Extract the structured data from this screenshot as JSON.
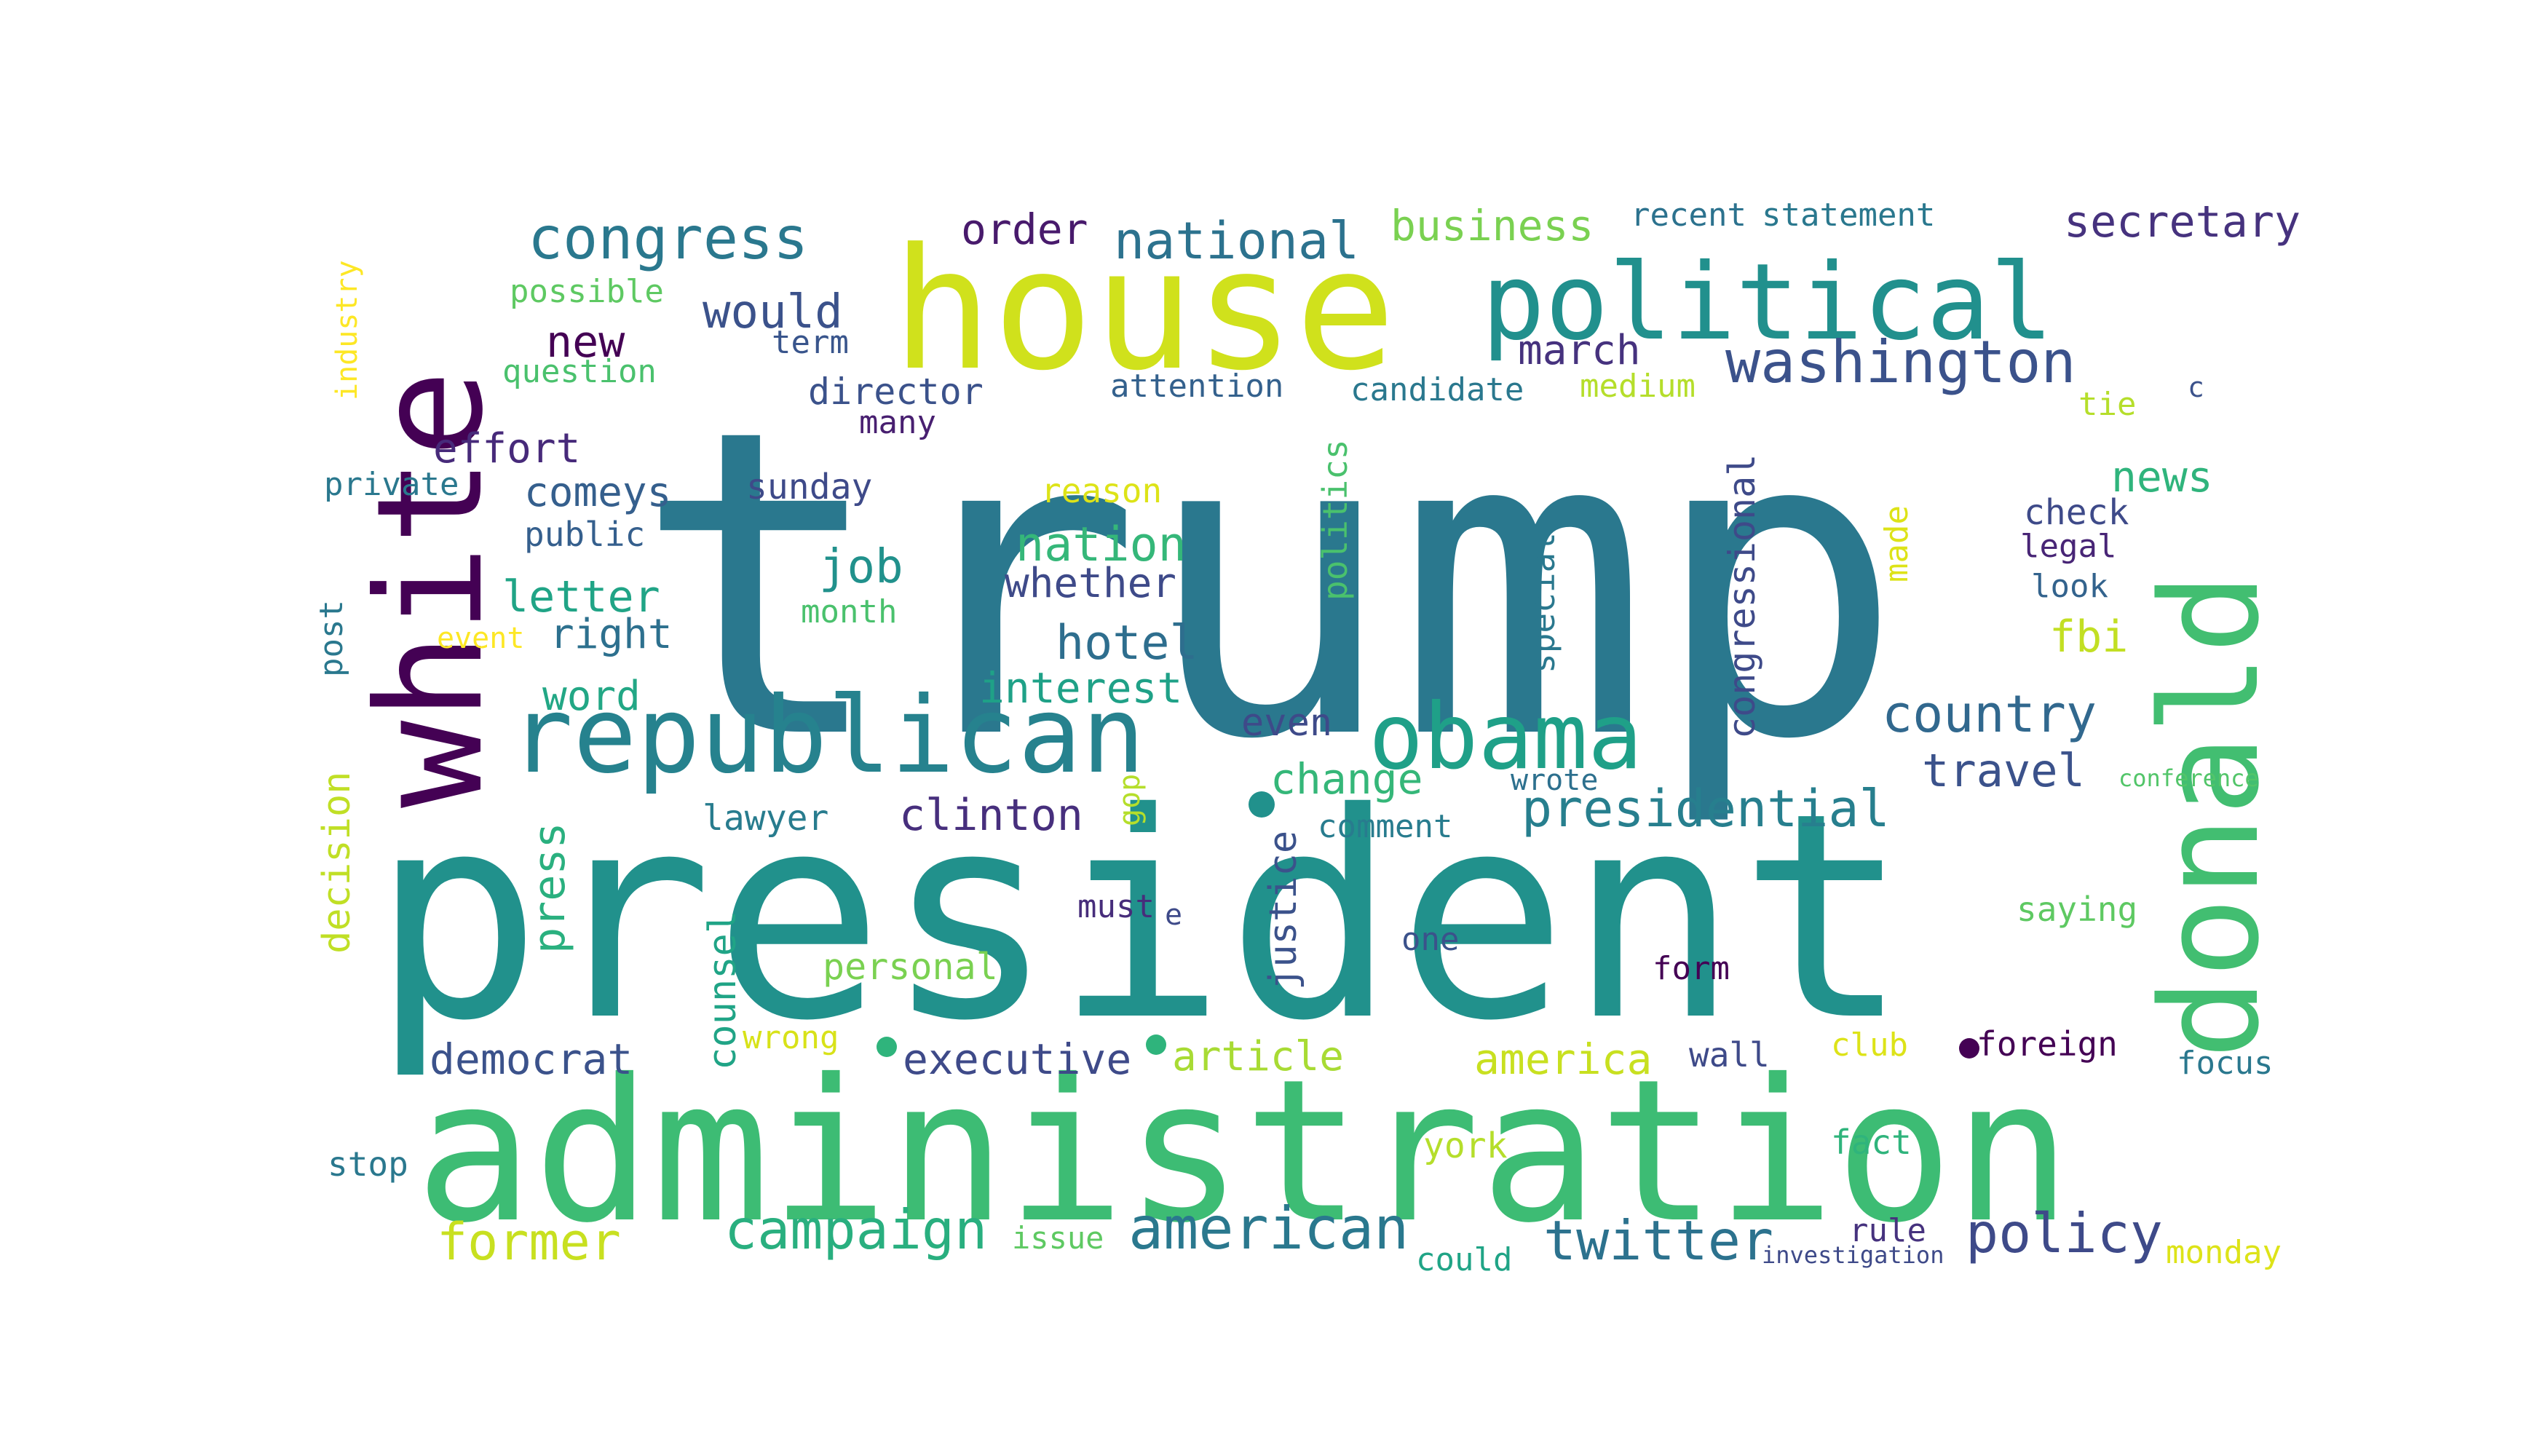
{
  "words": [
    {
      "text": "trump",
      "color": "#2a788e"
    },
    {
      "text": "president",
      "color": "#21918c"
    },
    {
      "text": "administration",
      "color": "#3dbc74"
    },
    {
      "text": "house",
      "color": "#d0e11c"
    },
    {
      "text": "white",
      "color": "#440154"
    },
    {
      "text": "donald",
      "color": "#42be71"
    },
    {
      "text": "political",
      "color": "#21908d"
    },
    {
      "text": "republican",
      "color": "#26828e"
    },
    {
      "text": "obama",
      "color": "#1fa088"
    },
    {
      "text": "congress",
      "color": "#2a788e"
    },
    {
      "text": "washington",
      "color": "#3b528b"
    },
    {
      "text": "national",
      "color": "#2c728e"
    },
    {
      "text": "presidential",
      "color": "#277f8e"
    },
    {
      "text": "country",
      "color": "#31688e"
    },
    {
      "text": "campaign",
      "color": "#29af7f"
    },
    {
      "text": "american",
      "color": "#2a788e"
    },
    {
      "text": "twitter",
      "color": "#2c728e"
    },
    {
      "text": "policy",
      "color": "#3e4a89"
    },
    {
      "text": "former",
      "color": "#c8e020"
    },
    {
      "text": "secretary",
      "color": "#46327e"
    },
    {
      "text": "nation",
      "color": "#35b779"
    },
    {
      "text": "hotel",
      "color": "#2e6e8e"
    },
    {
      "text": "clinton",
      "color": "#472f7d"
    },
    {
      "text": "travel",
      "color": "#3b528b"
    },
    {
      "text": "business",
      "color": "#7ad151"
    },
    {
      "text": "news",
      "color": "#2fb47c"
    },
    {
      "text": "order",
      "color": "#481a6c"
    },
    {
      "text": "new",
      "color": "#440154"
    },
    {
      "text": "would",
      "color": "#3b528b"
    },
    {
      "text": "march",
      "color": "#46327e"
    },
    {
      "text": "letter",
      "color": "#20a486"
    },
    {
      "text": "job",
      "color": "#21918c"
    },
    {
      "text": "fbi",
      "color": "#c2df23"
    },
    {
      "text": "america",
      "color": "#c8e020"
    },
    {
      "text": "executive",
      "color": "#3e4a89"
    },
    {
      "text": "democrat",
      "color": "#3b528b"
    },
    {
      "text": "interest",
      "color": "#1fa187"
    },
    {
      "text": "word",
      "color": "#22a785"
    },
    {
      "text": "change",
      "color": "#35b779"
    },
    {
      "text": "article",
      "color": "#a8db34"
    },
    {
      "text": "effort",
      "color": "#472a7a"
    },
    {
      "text": "comeys",
      "color": "#355f8d"
    },
    {
      "text": "right",
      "color": "#2d708e"
    },
    {
      "text": "press",
      "color": "#2ab07f"
    },
    {
      "text": "counsel",
      "color": "#20a486"
    },
    {
      "text": "justice",
      "color": "#3b528b"
    },
    {
      "text": "congressional",
      "color": "#3e4a89"
    },
    {
      "text": "whether",
      "color": "#3e4a89"
    },
    {
      "text": "director",
      "color": "#3b528b"
    },
    {
      "text": "decision",
      "color": "#c0df25"
    },
    {
      "text": "special",
      "color": "#2a788e"
    },
    {
      "text": "politics",
      "color": "#4ac16d"
    },
    {
      "text": "even",
      "color": "#3e4a89"
    },
    {
      "text": "personal",
      "color": "#7ad151"
    },
    {
      "text": "lawyer",
      "color": "#287c8e"
    },
    {
      "text": "attention",
      "color": "#34618d"
    },
    {
      "text": "candidate",
      "color": "#2a788e"
    },
    {
      "text": "medium",
      "color": "#b5de2b"
    },
    {
      "text": "sunday",
      "color": "#3e4a89"
    },
    {
      "text": "reason",
      "color": "#dde318"
    },
    {
      "text": "possible",
      "color": "#5ec962"
    },
    {
      "text": "question",
      "color": "#4ac16d"
    },
    {
      "text": "private",
      "color": "#2a788e"
    },
    {
      "text": "public",
      "color": "#355f8d"
    },
    {
      "text": "term",
      "color": "#39558c"
    },
    {
      "text": "many",
      "color": "#481f70"
    },
    {
      "text": "month",
      "color": "#4ac16d"
    },
    {
      "text": "event",
      "color": "#fde725"
    },
    {
      "text": "post",
      "color": "#2a788e"
    },
    {
      "text": "industry",
      "color": "#fde725"
    },
    {
      "text": "recent",
      "color": "#2c728e"
    },
    {
      "text": "statement",
      "color": "#2a788e"
    },
    {
      "text": "check",
      "color": "#3e4a89"
    },
    {
      "text": "legal",
      "color": "#482576"
    },
    {
      "text": "look",
      "color": "#33638d"
    },
    {
      "text": "made",
      "color": "#dde318"
    },
    {
      "text": "tie",
      "color": "#b5de2b"
    },
    {
      "text": "c",
      "color": "#3b528b"
    },
    {
      "text": "saying",
      "color": "#5ec962"
    },
    {
      "text": "wrote",
      "color": "#2d708e"
    },
    {
      "text": "conference",
      "color": "#52c569"
    },
    {
      "text": "comment",
      "color": "#287c8e"
    },
    {
      "text": "one",
      "color": "#3b528b"
    },
    {
      "text": "must",
      "color": "#472d7b"
    },
    {
      "text": "e",
      "color": "#3e4a89"
    },
    {
      "text": "gop",
      "color": "#b5de2b"
    },
    {
      "text": "form",
      "color": "#440154"
    },
    {
      "text": "wall",
      "color": "#3e4a89"
    },
    {
      "text": "club",
      "color": "#dde318"
    },
    {
      "text": "foreign",
      "color": "#440154"
    },
    {
      "text": "focus",
      "color": "#2a788e"
    },
    {
      "text": "wrong",
      "color": "#d8e219"
    },
    {
      "text": "york",
      "color": "#b5de2b"
    },
    {
      "text": "fact",
      "color": "#2fb47c"
    },
    {
      "text": "stop",
      "color": "#2a788e"
    },
    {
      "text": "issue",
      "color": "#5ec962"
    },
    {
      "text": "could",
      "color": "#20a486"
    },
    {
      "text": "rule",
      "color": "#46327e"
    },
    {
      "text": "investigation",
      "color": "#3e4a89"
    },
    {
      "text": "monday",
      "color": "#dde318"
    }
  ],
  "dots": [
    {
      "color": "#21918c"
    },
    {
      "color": "#2fb47c"
    },
    {
      "color": "#2fb47c"
    },
    {
      "color": "#35b779"
    },
    {
      "color": "#440154"
    }
  ]
}
